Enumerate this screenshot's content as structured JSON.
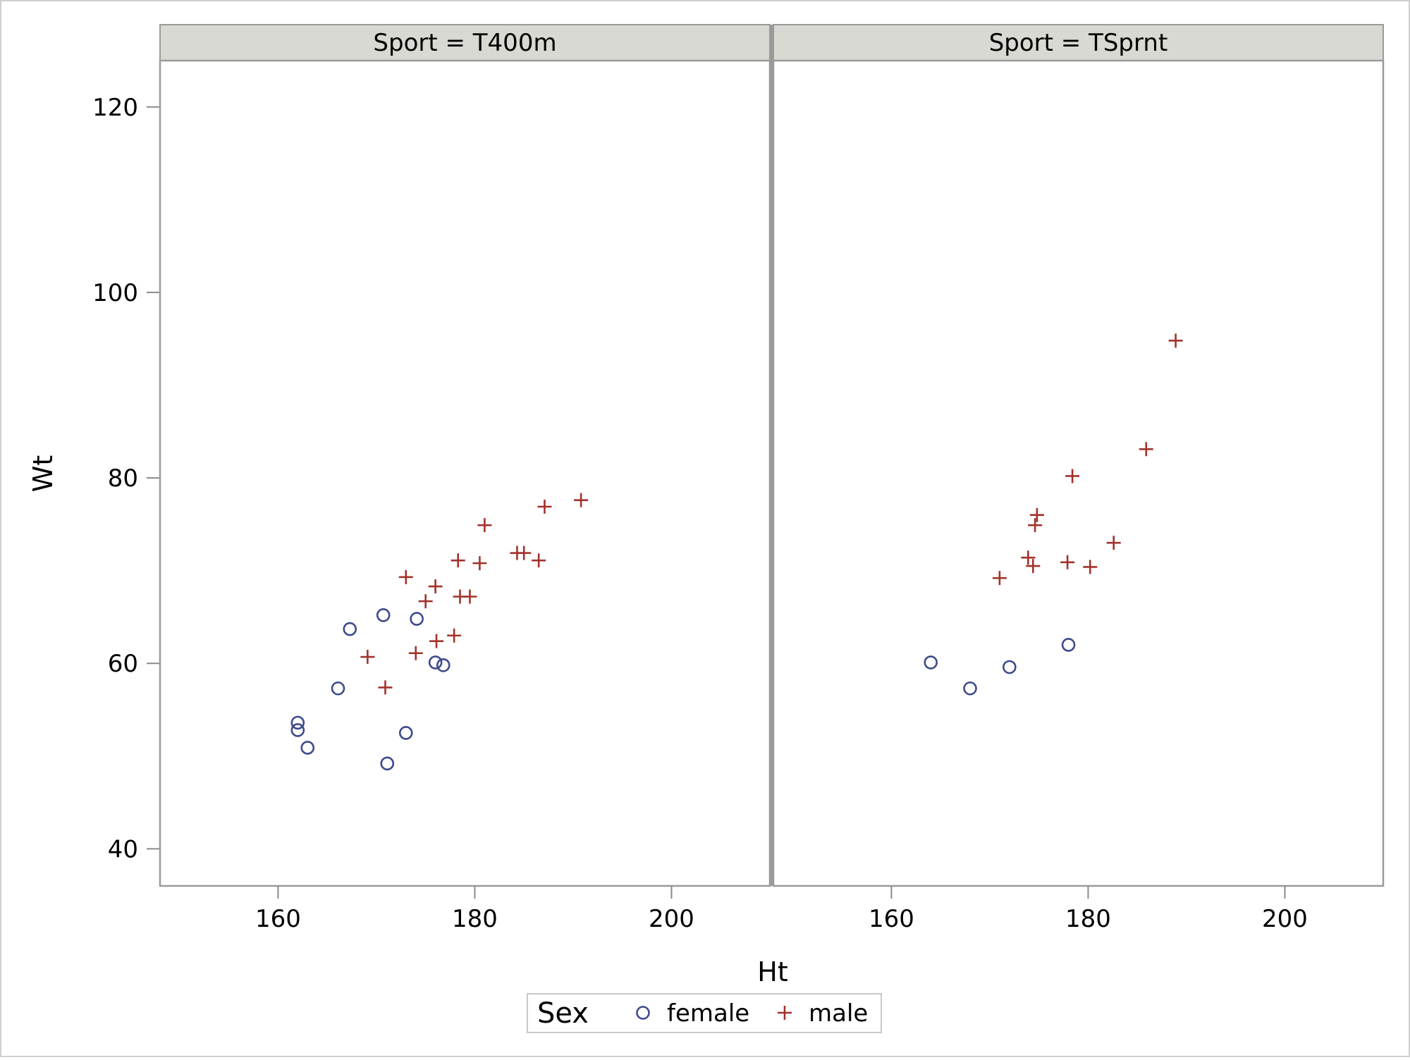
{
  "chart_data": {
    "type": "scatter",
    "layout": "panel",
    "panel_variable": "Sport",
    "xlabel": "Ht",
    "ylabel": "Wt",
    "xlim": [
      148,
      210
    ],
    "ylim": [
      36,
      125
    ],
    "xticks": [
      160,
      180,
      200
    ],
    "yticks": [
      40,
      60,
      80,
      100,
      120
    ],
    "group_variable": "Sex",
    "legend": {
      "title": "Sex",
      "placement": "bottom-center",
      "entries": [
        {
          "label": "female",
          "marker": "circle",
          "color": "#3d4a8c"
        },
        {
          "label": "male",
          "marker": "plus",
          "color": "#a3322b"
        }
      ]
    },
    "panels": [
      {
        "title": "Sport = T400m",
        "series": [
          {
            "name": "female",
            "points": [
              [
                162.0,
                53.6
              ],
              [
                162.0,
                52.8
              ],
              [
                163.0,
                50.9
              ],
              [
                166.1,
                57.3
              ],
              [
                167.3,
                63.7
              ],
              [
                170.7,
                65.2
              ],
              [
                171.1,
                49.2
              ],
              [
                173.0,
                52.5
              ],
              [
                174.1,
                64.8
              ],
              [
                176.0,
                60.1
              ],
              [
                176.8,
                59.8
              ]
            ]
          },
          {
            "name": "male",
            "points": [
              [
                169.1,
                60.7
              ],
              [
                170.9,
                57.4
              ],
              [
                173.0,
                69.3
              ],
              [
                174.0,
                61.1
              ],
              [
                175.0,
                66.7
              ],
              [
                176.0,
                68.3
              ],
              [
                176.1,
                62.4
              ],
              [
                177.9,
                63.0
              ],
              [
                178.3,
                71.1
              ],
              [
                178.5,
                67.2
              ],
              [
                179.5,
                67.2
              ],
              [
                180.5,
                70.8
              ],
              [
                181.0,
                74.9
              ],
              [
                184.3,
                71.9
              ],
              [
                185.0,
                71.9
              ],
              [
                186.5,
                71.1
              ],
              [
                187.1,
                76.9
              ],
              [
                190.8,
                77.6
              ]
            ]
          }
        ]
      },
      {
        "title": "Sport = TSprnt",
        "series": [
          {
            "name": "female",
            "points": [
              [
                164.0,
                60.1
              ],
              [
                168.0,
                57.3
              ],
              [
                172.0,
                59.6
              ],
              [
                178.0,
                62.0
              ]
            ]
          },
          {
            "name": "male",
            "points": [
              [
                171.0,
                69.2
              ],
              [
                173.9,
                71.4
              ],
              [
                174.4,
                70.5
              ],
              [
                174.6,
                74.9
              ],
              [
                174.8,
                76.0
              ],
              [
                177.9,
                70.9
              ],
              [
                178.4,
                80.2
              ],
              [
                180.2,
                70.4
              ],
              [
                182.6,
                73.0
              ],
              [
                185.9,
                83.1
              ],
              [
                188.9,
                94.8
              ]
            ]
          }
        ]
      }
    ]
  }
}
